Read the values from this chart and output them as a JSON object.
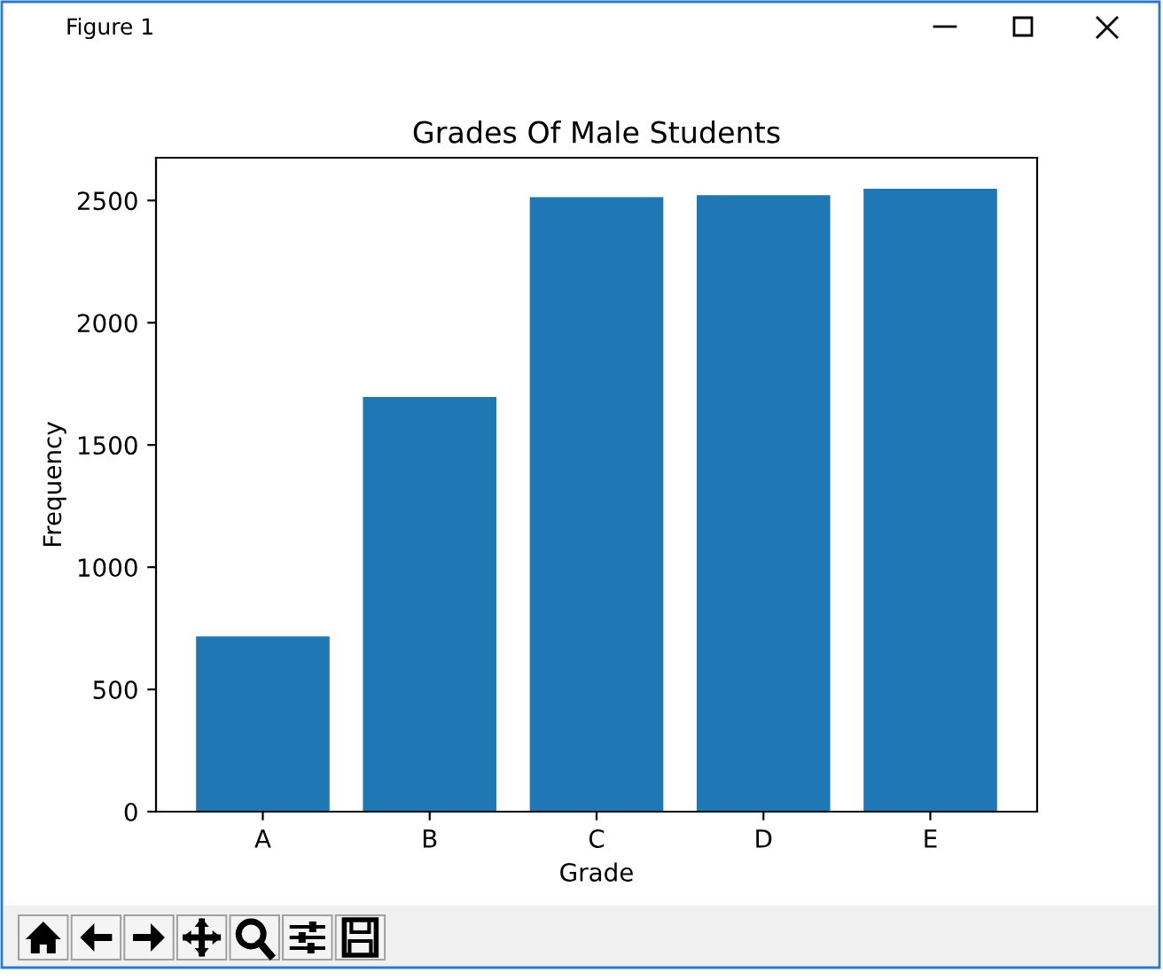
{
  "chart_data": {
    "type": "bar",
    "title": "Grades Of Male Students",
    "xlabel": "Grade",
    "ylabel": "Frequency",
    "categories": [
      "A",
      "B",
      "C",
      "D",
      "E"
    ],
    "values": [
      717,
      1696,
      2514,
      2522,
      2548
    ],
    "color": "#1f77b4",
    "ylim": [
      0,
      2675
    ],
    "yticks": [
      0,
      500,
      1000,
      1500,
      2000,
      2500
    ],
    "annotations": [
      "Figure 1"
    ]
  }
}
